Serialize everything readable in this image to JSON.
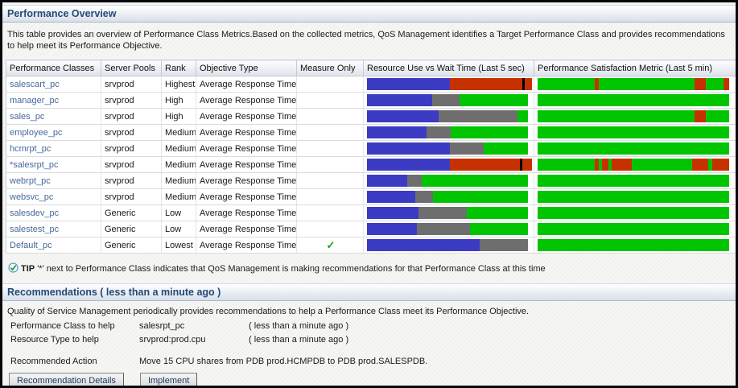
{
  "sections": {
    "overview": {
      "title": "Performance Overview",
      "description": "This table provides an overview of Performance Class Metrics.Based on the collected metrics, QoS Management identifies a Target Performance Class and provides recommendations to help meet its Performance Objective."
    },
    "recommendations": {
      "title": "Recommendations ( less than a minute ago )",
      "description": "Quality of Service Management periodically provides recommendations to help a Performance Class meet its Performance Objective."
    }
  },
  "tip": {
    "icon": "tip-check-icon",
    "label": "TIP",
    "text": "'*' next to Performance Class indicates that QoS Management is making recommendations for that Performance Class at this time"
  },
  "colors": {
    "blue": "#3b3bc4",
    "red": "#c53200",
    "gray": "#6e6e6e",
    "green": "#00c400",
    "black": "#000000",
    "link": "#47689b"
  },
  "table": {
    "columns": [
      "Performance Classes",
      "Server Pools",
      "Rank",
      "Objective Type",
      "Measure Only",
      "Resource Use vs Wait Time (Last 5 sec)",
      "Performance Satisfaction Metric (Last 5 min)"
    ],
    "check_glyph": "✓",
    "rows": [
      {
        "performance_class": "salescart_pc",
        "server_pool": "srvprod",
        "rank": "Highest",
        "objective_type": "Average Response Time",
        "measure_only": false,
        "resource_use_segments": [
          {
            "color": "blue",
            "pct": 52.5
          },
          {
            "color": "red",
            "pct": 46
          },
          {
            "color": "black",
            "pct": 1.5
          },
          {
            "color": "red",
            "pct": 4.5
          }
        ],
        "satisfaction_segments": [
          {
            "color": "green",
            "pct": 30
          },
          {
            "color": "red",
            "pct": 2
          },
          {
            "color": "green",
            "pct": 50
          },
          {
            "color": "red",
            "pct": 6
          },
          {
            "color": "green",
            "pct": 9
          },
          {
            "color": "red",
            "pct": 3
          }
        ]
      },
      {
        "performance_class": "manager_pc",
        "server_pool": "srvprod",
        "rank": "High",
        "objective_type": "Average Response Time",
        "measure_only": false,
        "resource_use_segments": [
          {
            "color": "blue",
            "pct": 40.5
          },
          {
            "color": "gray",
            "pct": 17
          },
          {
            "color": "green",
            "pct": 42.5
          }
        ],
        "satisfaction_segments": [
          {
            "color": "green",
            "pct": 100
          }
        ]
      },
      {
        "performance_class": "sales_pc",
        "server_pool": "srvprod",
        "rank": "High",
        "objective_type": "Average Response Time",
        "measure_only": false,
        "resource_use_segments": [
          {
            "color": "blue",
            "pct": 44.5
          },
          {
            "color": "gray",
            "pct": 49
          },
          {
            "color": "green",
            "pct": 6.5
          }
        ],
        "satisfaction_segments": [
          {
            "color": "green",
            "pct": 82
          },
          {
            "color": "red",
            "pct": 6
          },
          {
            "color": "green",
            "pct": 12
          }
        ]
      },
      {
        "performance_class": "employee_pc",
        "server_pool": "srvprod",
        "rank": "Medium",
        "objective_type": "Average Response Time",
        "measure_only": false,
        "resource_use_segments": [
          {
            "color": "blue",
            "pct": 37
          },
          {
            "color": "gray",
            "pct": 15
          },
          {
            "color": "green",
            "pct": 48
          }
        ],
        "satisfaction_segments": [
          {
            "color": "green",
            "pct": 100
          }
        ]
      },
      {
        "performance_class": "hcmrpt_pc",
        "server_pool": "srvprod",
        "rank": "Medium",
        "objective_type": "Average Response Time",
        "measure_only": false,
        "resource_use_segments": [
          {
            "color": "blue",
            "pct": 51.5
          },
          {
            "color": "gray",
            "pct": 21
          },
          {
            "color": "green",
            "pct": 27.5
          }
        ],
        "satisfaction_segments": [
          {
            "color": "green",
            "pct": 100
          }
        ]
      },
      {
        "performance_class": "*salesrpt_pc",
        "server_pool": "srvprod",
        "rank": "Medium",
        "objective_type": "Average Response Time",
        "measure_only": false,
        "resource_use_segments": [
          {
            "color": "blue",
            "pct": 52.5
          },
          {
            "color": "red",
            "pct": 44.5
          },
          {
            "color": "black",
            "pct": 1.5
          },
          {
            "color": "red",
            "pct": 6
          }
        ],
        "satisfaction_segments": [
          {
            "color": "green",
            "pct": 30
          },
          {
            "color": "red",
            "pct": 2
          },
          {
            "color": "green",
            "pct": 1.5
          },
          {
            "color": "red",
            "pct": 3.5
          },
          {
            "color": "green",
            "pct": 1.5
          },
          {
            "color": "red",
            "pct": 10.5
          },
          {
            "color": "green",
            "pct": 31.5
          },
          {
            "color": "red",
            "pct": 8.5
          },
          {
            "color": "green",
            "pct": 2
          },
          {
            "color": "red",
            "pct": 9
          }
        ]
      },
      {
        "performance_class": "webrpt_pc",
        "server_pool": "srvprod",
        "rank": "Medium",
        "objective_type": "Average Response Time",
        "measure_only": false,
        "resource_use_segments": [
          {
            "color": "blue",
            "pct": 25
          },
          {
            "color": "gray",
            "pct": 9
          },
          {
            "color": "green",
            "pct": 66
          }
        ],
        "satisfaction_segments": [
          {
            "color": "green",
            "pct": 100
          }
        ]
      },
      {
        "performance_class": "websvc_pc",
        "server_pool": "srvprod",
        "rank": "Medium",
        "objective_type": "Average Response Time",
        "measure_only": false,
        "resource_use_segments": [
          {
            "color": "blue",
            "pct": 30
          },
          {
            "color": "gray",
            "pct": 11
          },
          {
            "color": "green",
            "pct": 59
          }
        ],
        "satisfaction_segments": [
          {
            "color": "green",
            "pct": 100
          }
        ]
      },
      {
        "performance_class": "salesdev_pc",
        "server_pool": "Generic",
        "rank": "Low",
        "objective_type": "Average Response Time",
        "measure_only": false,
        "resource_use_segments": [
          {
            "color": "blue",
            "pct": 32
          },
          {
            "color": "gray",
            "pct": 30
          },
          {
            "color": "green",
            "pct": 38
          }
        ],
        "satisfaction_segments": [
          {
            "color": "green",
            "pct": 100
          }
        ]
      },
      {
        "performance_class": "salestest_pc",
        "server_pool": "Generic",
        "rank": "Low",
        "objective_type": "Average Response Time",
        "measure_only": false,
        "resource_use_segments": [
          {
            "color": "blue",
            "pct": 31
          },
          {
            "color": "gray",
            "pct": 33
          },
          {
            "color": "green",
            "pct": 36
          }
        ],
        "satisfaction_segments": [
          {
            "color": "green",
            "pct": 100
          }
        ]
      },
      {
        "performance_class": "Default_pc",
        "server_pool": "Generic",
        "rank": "Lowest",
        "objective_type": "Average Response Time",
        "measure_only": true,
        "resource_use_segments": [
          {
            "color": "blue",
            "pct": 70
          },
          {
            "color": "gray",
            "pct": 30
          }
        ],
        "satisfaction_segments": [
          {
            "color": "green",
            "pct": 100
          }
        ]
      }
    ]
  },
  "recommendations": {
    "rows": [
      {
        "label": "Performance Class to help",
        "value": "salesrpt_pc",
        "time": "( less than a minute ago )"
      },
      {
        "label": "Resource Type to help",
        "value": "srvprod:prod.cpu",
        "time": "( less than a minute ago )"
      }
    ],
    "action_label": "Recommended Action",
    "action_value": "Move 15 CPU shares from PDB prod.HCMPDB to PDB prod.SALESPDB.",
    "buttons": [
      "Recommendation Details",
      "Implement"
    ]
  }
}
